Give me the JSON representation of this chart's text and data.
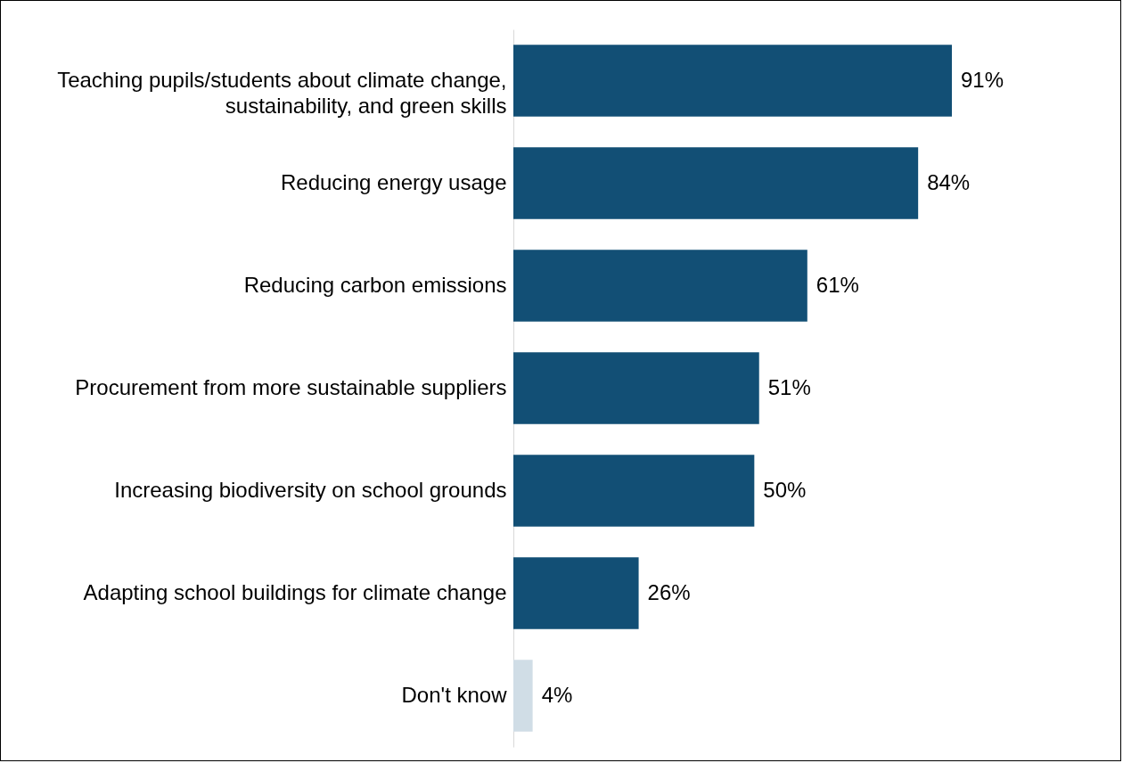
{
  "chart_data": {
    "type": "bar",
    "orientation": "horizontal",
    "data_labels": true,
    "value_labels": [
      "91%",
      "84%",
      "61%",
      "51%",
      "50%",
      "26%",
      "4%"
    ],
    "categories": [
      "Teaching pupils/students about climate change, sustainability, and green skills",
      "Reducing energy usage",
      "Reducing carbon emissions",
      "Procurement from more sustainable suppliers",
      "Increasing biodiversity on school grounds",
      "Adapting school buildings for climate change",
      "Don't know"
    ],
    "values": [
      91,
      84,
      61,
      51,
      50,
      26,
      4
    ],
    "colors": [
      "#124f75",
      "#124f75",
      "#124f75",
      "#124f75",
      "#124f75",
      "#124f75",
      "#d0dde6"
    ]
  }
}
